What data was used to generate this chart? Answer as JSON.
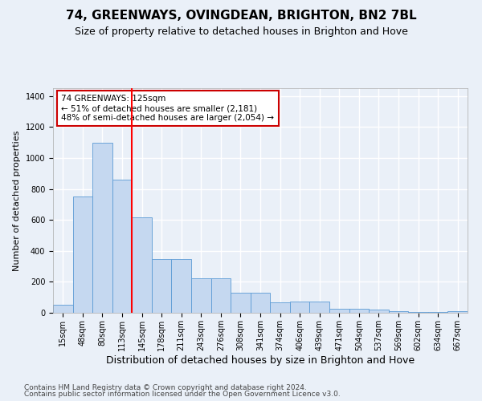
{
  "title": "74, GREENWAYS, OVINGDEAN, BRIGHTON, BN2 7BL",
  "subtitle": "Size of property relative to detached houses in Brighton and Hove",
  "xlabel": "Distribution of detached houses by size in Brighton and Hove",
  "ylabel": "Number of detached properties",
  "categories": [
    "15sqm",
    "48sqm",
    "80sqm",
    "113sqm",
    "145sqm",
    "178sqm",
    "211sqm",
    "243sqm",
    "276sqm",
    "308sqm",
    "341sqm",
    "374sqm",
    "406sqm",
    "439sqm",
    "471sqm",
    "504sqm",
    "537sqm",
    "569sqm",
    "602sqm",
    "634sqm",
    "667sqm"
  ],
  "values": [
    50,
    750,
    1100,
    860,
    615,
    345,
    345,
    225,
    225,
    130,
    130,
    65,
    70,
    70,
    28,
    25,
    20,
    12,
    3,
    3,
    12
  ],
  "bar_color": "#c5d8f0",
  "bar_edge_color": "#5b9bd5",
  "red_line_x": 3.5,
  "annotation_text": "74 GREENWAYS: 125sqm\n← 51% of detached houses are smaller (2,181)\n48% of semi-detached houses are larger (2,054) →",
  "annotation_box_color": "#ffffff",
  "annotation_box_edge": "#cc0000",
  "ylim": [
    0,
    1450
  ],
  "yticks": [
    0,
    200,
    400,
    600,
    800,
    1000,
    1200,
    1400
  ],
  "footer1": "Contains HM Land Registry data © Crown copyright and database right 2024.",
  "footer2": "Contains public sector information licensed under the Open Government Licence v3.0.",
  "bg_color": "#eaf0f8",
  "plot_bg_color": "#eaf0f8",
  "grid_color": "#ffffff",
  "title_fontsize": 11,
  "subtitle_fontsize": 9,
  "xlabel_fontsize": 9,
  "ylabel_fontsize": 8,
  "tick_fontsize": 7,
  "annotation_fontsize": 7.5,
  "footer_fontsize": 6.5
}
